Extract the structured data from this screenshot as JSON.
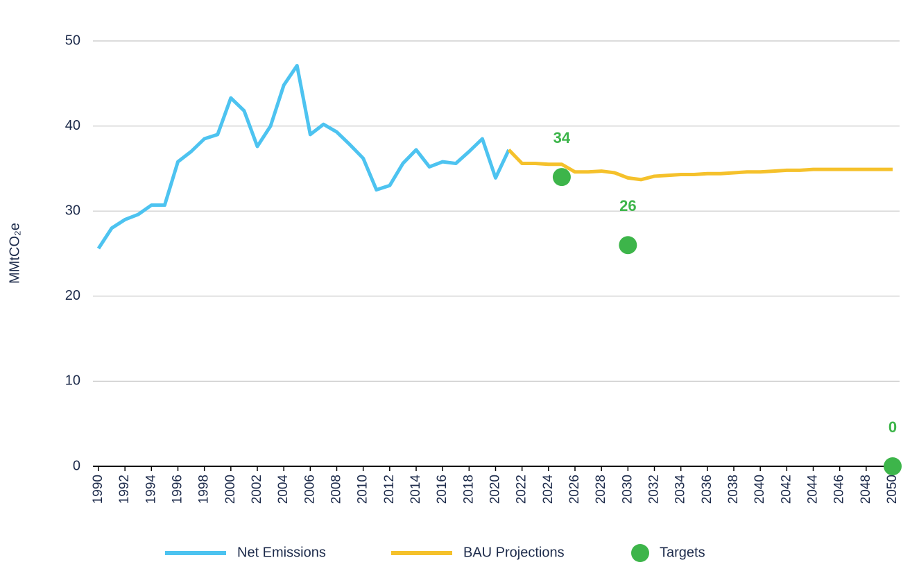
{
  "chart_data": {
    "type": "line",
    "ylabel": "MMtCO₂e",
    "x": [
      1990,
      1991,
      1992,
      1993,
      1994,
      1995,
      1996,
      1997,
      1998,
      1999,
      2000,
      2001,
      2002,
      2003,
      2004,
      2005,
      2006,
      2007,
      2008,
      2009,
      2010,
      2011,
      2012,
      2013,
      2014,
      2015,
      2016,
      2017,
      2018,
      2019,
      2020,
      2021,
      2022,
      2023,
      2024,
      2025,
      2026,
      2027,
      2028,
      2029,
      2030,
      2031,
      2032,
      2033,
      2034,
      2035,
      2036,
      2037,
      2038,
      2039,
      2040,
      2041,
      2042,
      2043,
      2044,
      2045,
      2046,
      2047,
      2048,
      2049,
      2050
    ],
    "series": [
      {
        "name": "Net Emissions",
        "color": "#4dc3f0",
        "kind": "line",
        "values": [
          25.6,
          28,
          29,
          29.6,
          30.7,
          30.7,
          35.8,
          37,
          38.5,
          39,
          43.3,
          41.8,
          37.6,
          40,
          44.8,
          47.1,
          39,
          40.2,
          39.3,
          37.8,
          36.2,
          32.5,
          33,
          35.6,
          37.2,
          35.2,
          35.8,
          35.6,
          37,
          38.5,
          33.9,
          37.2,
          null,
          null,
          null,
          null,
          null,
          null,
          null,
          null,
          null,
          null,
          null,
          null,
          null,
          null,
          null,
          null,
          null,
          null,
          null,
          null,
          null,
          null,
          null,
          null,
          null,
          null,
          null,
          null,
          null
        ]
      },
      {
        "name": "BAU Projections",
        "color": "#f5c12b",
        "kind": "line",
        "values": [
          null,
          null,
          null,
          null,
          null,
          null,
          null,
          null,
          null,
          null,
          null,
          null,
          null,
          null,
          null,
          null,
          null,
          null,
          null,
          null,
          null,
          null,
          null,
          null,
          null,
          null,
          null,
          null,
          null,
          null,
          null,
          37.2,
          35.6,
          35.6,
          35.5,
          35.5,
          34.6,
          34.6,
          34.7,
          34.5,
          33.9,
          33.7,
          34.1,
          34.2,
          34.3,
          34.3,
          34.4,
          34.4,
          34.5,
          34.6,
          34.6,
          34.7,
          34.8,
          34.8,
          34.9,
          34.9,
          34.9,
          34.9,
          34.9,
          34.9,
          34.9
        ]
      },
      {
        "name": "Targets",
        "color": "#3db54a",
        "kind": "scatter",
        "values": [
          null,
          null,
          null,
          null,
          null,
          null,
          null,
          null,
          null,
          null,
          null,
          null,
          null,
          null,
          null,
          null,
          null,
          null,
          null,
          null,
          null,
          null,
          null,
          null,
          null,
          null,
          null,
          null,
          null,
          null,
          null,
          null,
          null,
          null,
          null,
          34,
          null,
          null,
          null,
          null,
          26,
          null,
          null,
          null,
          null,
          null,
          null,
          null,
          null,
          null,
          null,
          null,
          null,
          null,
          null,
          null,
          null,
          null,
          null,
          null,
          0
        ]
      }
    ],
    "xlim": [
      1990,
      2050
    ],
    "xticks": [
      1990,
      1992,
      1994,
      1996,
      1998,
      2000,
      2002,
      2004,
      2006,
      2008,
      2010,
      2012,
      2014,
      2016,
      2018,
      2020,
      2022,
      2024,
      2026,
      2028,
      2030,
      2032,
      2034,
      2036,
      2038,
      2040,
      2042,
      2044,
      2046,
      2048,
      2050
    ],
    "ylim": [
      0,
      50
    ],
    "yticks": [
      0,
      10,
      20,
      30,
      40,
      50
    ],
    "grid": true,
    "legend": "bottom"
  }
}
